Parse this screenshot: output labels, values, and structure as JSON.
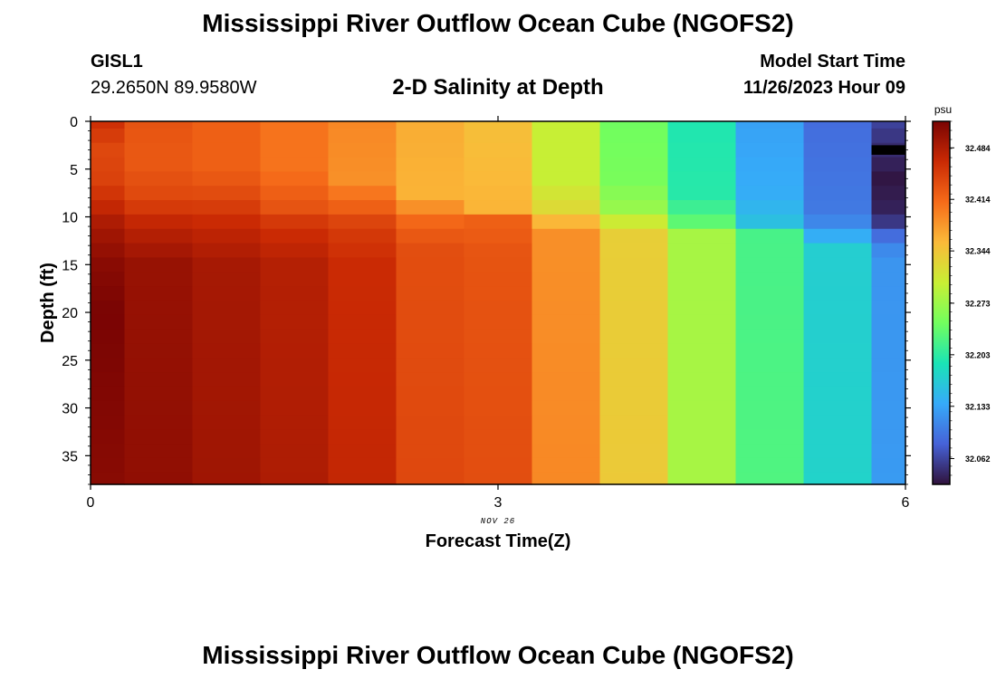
{
  "header": {
    "title": "Mississippi River Outflow Ocean Cube (NGOFS2)",
    "station_id": "GISL1",
    "station_coords": "29.2650N  89.9580W",
    "subtitle": "2-D Salinity at Depth",
    "model_start_label": "Model Start Time",
    "model_start_value": "11/26/2023 Hour 09"
  },
  "footer": {
    "title": "Mississippi River Outflow Ocean Cube (NGOFS2)"
  },
  "chart_data": {
    "type": "heatmap",
    "title": "2-D Salinity at Depth",
    "xlabel": "Forecast Time(Z)",
    "ylabel": "Depth (ft)",
    "x_date_label": "NOV 26",
    "xlim": [
      0,
      6
    ],
    "ylim": [
      0,
      38
    ],
    "y_inverted": true,
    "x_ticks": [
      0,
      3,
      6
    ],
    "y_ticks": [
      0,
      5,
      10,
      15,
      20,
      25,
      30,
      35
    ],
    "colorbar": {
      "unit": "psu",
      "min": 32.027,
      "max": 32.52,
      "tick_values": [
        32.062,
        32.133,
        32.203,
        32.273,
        32.344,
        32.414,
        32.484
      ],
      "tick_labels": [
        "32.062",
        "32.133",
        "32.203",
        "32.273",
        "32.344",
        "32.414",
        "32.484"
      ],
      "colormap": [
        "#30123b",
        "#4662d8",
        "#36aaf9",
        "#1ae4b6",
        "#72fe5e",
        "#c8ef34",
        "#faba39",
        "#f66b19",
        "#ca2a04",
        "#7a0403"
      ]
    },
    "time_columns": [
      0,
      0.5,
      1,
      1.5,
      2,
      2.5,
      3,
      3.5,
      4,
      4.5,
      5,
      5.5,
      6
    ],
    "depth_rows": [
      0,
      1.5,
      3,
      4.5,
      6,
      7.5,
      9,
      10.5,
      12,
      13.5,
      15,
      16.5,
      18,
      19.5,
      21,
      22.5,
      24,
      25.5,
      27,
      28.5,
      30,
      31.5,
      33,
      34.5,
      36,
      37.5
    ],
    "salinity_profiles": [
      {
        "time": 0,
        "values": [
          [
            0,
            32.46
          ],
          [
            3,
            32.44
          ],
          [
            6,
            32.445
          ],
          [
            8,
            32.46
          ],
          [
            11,
            32.49
          ],
          [
            15,
            32.51
          ],
          [
            20,
            32.52
          ],
          [
            38,
            32.51
          ]
        ]
      },
      {
        "time": 0.5,
        "values": [
          [
            0,
            32.43
          ],
          [
            4,
            32.425
          ],
          [
            8,
            32.44
          ],
          [
            11,
            32.475
          ],
          [
            15,
            32.5
          ],
          [
            38,
            32.505
          ]
        ]
      },
      {
        "time": 1,
        "values": [
          [
            0,
            32.42
          ],
          [
            5,
            32.42
          ],
          [
            8,
            32.44
          ],
          [
            11,
            32.47
          ],
          [
            15,
            32.49
          ],
          [
            38,
            32.495
          ]
        ]
      },
      {
        "time": 1.5,
        "values": [
          [
            0,
            32.405
          ],
          [
            5,
            32.405
          ],
          [
            9,
            32.43
          ],
          [
            11,
            32.46
          ],
          [
            15,
            32.48
          ],
          [
            38,
            32.485
          ]
        ]
      },
      {
        "time": 2,
        "values": [
          [
            0,
            32.39
          ],
          [
            6,
            32.385
          ],
          [
            9,
            32.42
          ],
          [
            11,
            32.45
          ],
          [
            15,
            32.465
          ],
          [
            38,
            32.47
          ]
        ]
      },
      {
        "time": 2.5,
        "values": [
          [
            0,
            32.365
          ],
          [
            8,
            32.36
          ],
          [
            10,
            32.41
          ],
          [
            13,
            32.435
          ],
          [
            38,
            32.44
          ]
        ]
      },
      {
        "time": 3,
        "values": [
          [
            0,
            32.35
          ],
          [
            10,
            32.36
          ],
          [
            10.5,
            32.42
          ],
          [
            14,
            32.43
          ],
          [
            38,
            32.435
          ]
        ]
      },
      {
        "time": 3.5,
        "values": [
          [
            0,
            32.3
          ],
          [
            6,
            32.3
          ],
          [
            10,
            32.33
          ],
          [
            11,
            32.385
          ],
          [
            38,
            32.39
          ]
        ]
      },
      {
        "time": 4,
        "values": [
          [
            0,
            32.245
          ],
          [
            6,
            32.25
          ],
          [
            10,
            32.275
          ],
          [
            11,
            32.335
          ],
          [
            38,
            32.34
          ]
        ]
      },
      {
        "time": 4.5,
        "values": [
          [
            0,
            32.195
          ],
          [
            8,
            32.2
          ],
          [
            11,
            32.24
          ],
          [
            12,
            32.28
          ],
          [
            38,
            32.28
          ]
        ]
      },
      {
        "time": 5,
        "values": [
          [
            0,
            32.13
          ],
          [
            8,
            32.14
          ],
          [
            11,
            32.16
          ],
          [
            12,
            32.22
          ],
          [
            38,
            32.225
          ]
        ]
      },
      {
        "time": 5.5,
        "values": [
          [
            0,
            32.09
          ],
          [
            10,
            32.1
          ],
          [
            12,
            32.14
          ],
          [
            13,
            32.17
          ],
          [
            38,
            32.175
          ]
        ]
      },
      {
        "time": 6,
        "values": [
          [
            0,
            32.06
          ],
          [
            6,
            32.03
          ],
          [
            10,
            32.04
          ],
          [
            12,
            32.09
          ],
          [
            14,
            32.12
          ],
          [
            38,
            32.125
          ]
        ]
      }
    ]
  }
}
